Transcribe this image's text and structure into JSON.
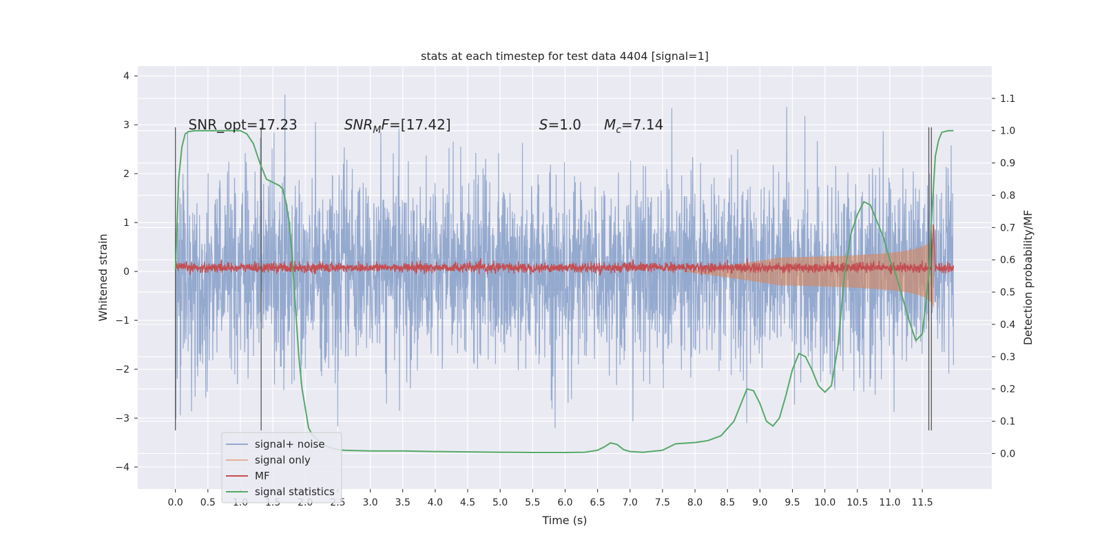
{
  "chart_data": {
    "type": "line",
    "title": "stats at each timestep for test data 4404 [signal=1]",
    "xlabel": "Time (s)",
    "ylabel": "Whitened strain",
    "y2label": "Detection probability/MF",
    "xlim": [
      -0.58,
      12.57
    ],
    "ylim": [
      -4.45,
      4.2
    ],
    "y2lim": [
      -0.11,
      1.2
    ],
    "x_ticks": [
      "0.0",
      "0.5",
      "1.0",
      "1.5",
      "2.0",
      "2.5",
      "3.0",
      "3.5",
      "4.0",
      "4.5",
      "5.0",
      "5.5",
      "6.0",
      "6.5",
      "7.0",
      "7.5",
      "8.0",
      "8.5",
      "9.0",
      "9.5",
      "10.0",
      "10.5",
      "11.0",
      "11.5"
    ],
    "y_ticks": [
      "4",
      "3",
      "2",
      "1",
      "0",
      "−1",
      "−2",
      "−3",
      "−4"
    ],
    "y2_ticks": [
      "1.1",
      "1.0",
      "0.9",
      "0.8",
      "0.7",
      "0.6",
      "0.5",
      "0.4",
      "0.3",
      "0.2",
      "0.1",
      "0.0"
    ],
    "grid": true,
    "legend_position": "lower-left",
    "annotations": [
      {
        "name": "snr-opt",
        "text": "SNR_opt=17.23",
        "x": 0.2,
        "y": 3.0
      },
      {
        "name": "snr-mf",
        "text": "SNR",
        "sub": "M",
        "tail": "F=[17.42]",
        "x": 2.6,
        "y": 3.0
      },
      {
        "name": "s-value",
        "text": "S",
        "tail": "=1.0",
        "x": 5.6,
        "y": 3.0
      },
      {
        "name": "mc-value",
        "text": "M",
        "sub": "c",
        "tail": "=7.14",
        "x": 6.6,
        "y": 3.0
      }
    ],
    "vlines": [
      {
        "x": 0.0,
        "ymin": -3.25,
        "ymax": 2.95
      },
      {
        "x": 1.32,
        "ymin": -3.25,
        "ymax": 2.95
      },
      {
        "x": 11.6,
        "ymin": -3.25,
        "ymax": 2.95
      },
      {
        "x": 11.64,
        "ymin": -3.25,
        "ymax": 2.95
      }
    ],
    "series": [
      {
        "name": "signal+ noise",
        "color": "#4c72b0",
        "alpha": 0.55,
        "x_range": [
          0,
          11.98
        ],
        "envelope_std": 0.95,
        "min": -4.1,
        "max": 3.8
      },
      {
        "name": "signal only",
        "color": "#dd8452",
        "alpha": 0.55,
        "chirp": {
          "start": 7.8,
          "end": 11.68,
          "peak_amp": 1.0
        }
      },
      {
        "name": "MF",
        "color": "#c44e52",
        "x_range": [
          0,
          11.98
        ],
        "level": 0.08,
        "noise": 0.05,
        "peak": {
          "x": 11.67,
          "y": 1.0
        }
      },
      {
        "name": "signal statistics",
        "color": "#55a868",
        "axis": "right",
        "x": [
          0.0,
          0.05,
          0.1,
          0.15,
          0.2,
          0.3,
          0.5,
          0.7,
          1.0,
          1.1,
          1.2,
          1.3,
          1.4,
          1.5,
          1.6,
          1.65,
          1.7,
          1.75,
          1.8,
          1.85,
          1.9,
          1.95,
          2.0,
          2.05,
          2.1,
          2.2,
          2.3,
          2.4,
          2.5,
          2.6,
          3.0,
          3.5,
          4.0,
          4.5,
          5.0,
          5.5,
          6.0,
          6.3,
          6.5,
          6.6,
          6.7,
          6.8,
          6.9,
          7.0,
          7.2,
          7.5,
          7.7,
          8.0,
          8.2,
          8.4,
          8.6,
          8.7,
          8.8,
          8.9,
          9.0,
          9.1,
          9.2,
          9.3,
          9.4,
          9.5,
          9.6,
          9.7,
          9.8,
          9.9,
          10.0,
          10.1,
          10.2,
          10.3,
          10.4,
          10.5,
          10.6,
          10.7,
          10.8,
          10.9,
          11.0,
          11.1,
          11.2,
          11.3,
          11.4,
          11.5,
          11.6,
          11.65,
          11.7,
          11.75,
          11.8,
          11.9,
          11.98
        ],
        "values": [
          0.57,
          0.85,
          0.95,
          0.99,
          0.997,
          1.0,
          1.0,
          1.0,
          1.0,
          0.99,
          0.96,
          0.9,
          0.85,
          0.84,
          0.83,
          0.82,
          0.78,
          0.72,
          0.6,
          0.45,
          0.3,
          0.2,
          0.14,
          0.08,
          0.06,
          0.04,
          0.025,
          0.017,
          0.012,
          0.01,
          0.008,
          0.008,
          0.006,
          0.005,
          0.004,
          0.003,
          0.003,
          0.004,
          0.01,
          0.02,
          0.033,
          0.028,
          0.012,
          0.006,
          0.004,
          0.01,
          0.03,
          0.034,
          0.04,
          0.055,
          0.1,
          0.15,
          0.2,
          0.195,
          0.155,
          0.1,
          0.085,
          0.11,
          0.18,
          0.26,
          0.31,
          0.3,
          0.26,
          0.21,
          0.19,
          0.21,
          0.33,
          0.55,
          0.68,
          0.74,
          0.78,
          0.77,
          0.72,
          0.67,
          0.6,
          0.55,
          0.48,
          0.41,
          0.35,
          0.37,
          0.55,
          0.75,
          0.92,
          0.97,
          0.995,
          1.0,
          1.0
        ]
      }
    ]
  }
}
